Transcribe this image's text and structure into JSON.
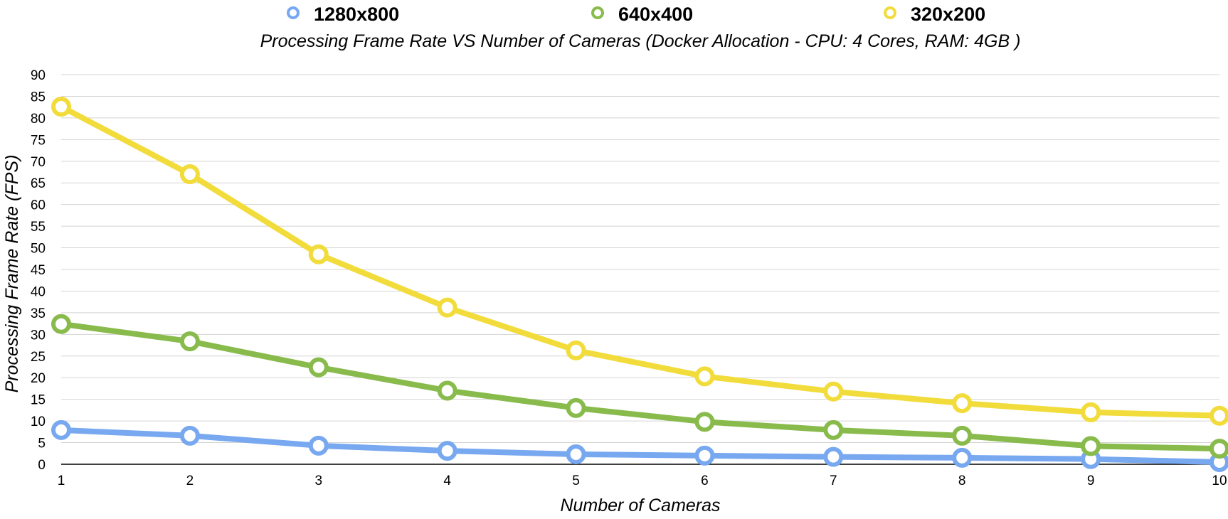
{
  "chart_data": {
    "type": "line",
    "title": "Processing Frame Rate VS Number of Cameras (Docker Allocation - CPU: 4 Cores, RAM: 4GB )",
    "xlabel": "Number of Cameras",
    "ylabel": "Processing Frame Rate (FPS)",
    "x": [
      1,
      2,
      3,
      4,
      5,
      6,
      7,
      8,
      9,
      10
    ],
    "xlim": [
      1,
      10
    ],
    "ylim": [
      0,
      90
    ],
    "yticks": [
      0,
      5,
      10,
      15,
      20,
      25,
      30,
      35,
      40,
      45,
      50,
      55,
      60,
      65,
      70,
      75,
      80,
      85,
      90
    ],
    "grid": true,
    "legend_position": "top",
    "series": [
      {
        "name": "1280x800",
        "color": "#78a8f0",
        "values": [
          7.9,
          6.6,
          4.3,
          3.1,
          2.3,
          2.0,
          1.7,
          1.5,
          1.2,
          0.5
        ]
      },
      {
        "name": "640x400",
        "color": "#88bb4c",
        "values": [
          32.4,
          28.4,
          22.4,
          17.0,
          13.0,
          9.8,
          7.9,
          6.6,
          4.2,
          3.6
        ]
      },
      {
        "name": "320x200",
        "color": "#f2dc3c",
        "values": [
          82.6,
          67.0,
          48.5,
          36.2,
          26.3,
          20.3,
          16.8,
          14.1,
          12.0,
          11.2
        ]
      }
    ]
  }
}
